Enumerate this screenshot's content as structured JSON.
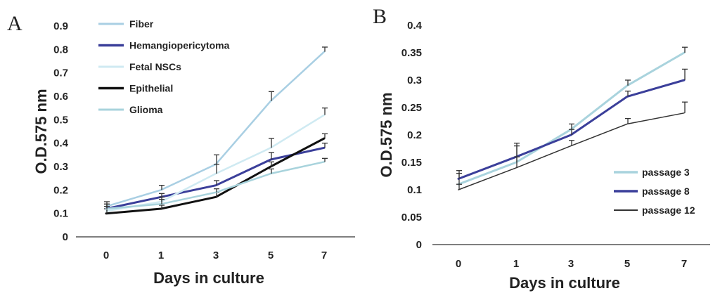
{
  "chart_data": [
    {
      "panel": "A",
      "type": "line",
      "xlabel": "Days in culture",
      "ylabel": "O.D.575 nm",
      "categories": [
        "0",
        "1",
        "3",
        "5",
        "7"
      ],
      "ylim": [
        0,
        0.9
      ],
      "yticks": [
        "0",
        "0.1",
        "0.2",
        "0.3",
        "0.4",
        "0.5",
        "0.6",
        "0.7",
        "0.8",
        "0.9"
      ],
      "legend_position": "top-left",
      "series": [
        {
          "name": "Fiber",
          "color": "#a9cfe3",
          "width": 2.5,
          "values": [
            0.13,
            0.2,
            0.31,
            0.58,
            0.79
          ],
          "errors": [
            0.02,
            0.02,
            0.04,
            0.04,
            0.02
          ]
        },
        {
          "name": "Hemangiopericytoma",
          "color": "#3b3f9a",
          "width": 3,
          "values": [
            0.12,
            0.17,
            0.22,
            0.33,
            0.38
          ],
          "errors": [
            0.02,
            0.015,
            0.02,
            0.03,
            0.02
          ]
        },
        {
          "name": "Fetal NSCs",
          "color": "#cfeaf2",
          "width": 2.5,
          "values": [
            0.11,
            0.15,
            0.27,
            0.38,
            0.52
          ],
          "errors": [
            0.02,
            0.02,
            0.04,
            0.04,
            0.03
          ]
        },
        {
          "name": "Epithelial",
          "color": "#111111",
          "width": 3,
          "values": [
            0.1,
            0.12,
            0.17,
            0.3,
            0.42
          ],
          "errors": [
            0.02,
            0.015,
            0.02,
            0.02,
            0.02
          ]
        },
        {
          "name": "Glioma",
          "color": "#a8d3dc",
          "width": 2.5,
          "values": [
            0.12,
            0.14,
            0.19,
            0.27,
            0.32
          ],
          "errors": [
            0.02,
            0.02,
            0.015,
            0.02,
            0.015
          ]
        }
      ]
    },
    {
      "panel": "B",
      "type": "line",
      "xlabel": "Days in culture",
      "ylabel": "O.D.575 nm",
      "categories": [
        "0",
        "1",
        "3",
        "5",
        "7"
      ],
      "ylim": [
        0,
        0.4
      ],
      "yticks": [
        "0",
        "0.05",
        "0.1",
        "0.15",
        "0.2",
        "0.25",
        "0.3",
        "0.35",
        "0.4"
      ],
      "legend_position": "bottom-right",
      "series": [
        {
          "name": "passage 3",
          "color": "#a9d3dd",
          "width": 3,
          "values": [
            0.11,
            0.15,
            0.21,
            0.29,
            0.35
          ],
          "errors": [
            0.02,
            0.03,
            0.01,
            0.01,
            0.01
          ]
        },
        {
          "name": "passage 8",
          "color": "#3b3f9a",
          "width": 3,
          "values": [
            0.12,
            0.16,
            0.2,
            0.27,
            0.3
          ],
          "errors": [
            0.015,
            0.025,
            0.01,
            0.01,
            0.02
          ]
        },
        {
          "name": "passage 12",
          "color": "#333333",
          "width": 1.5,
          "values": [
            0.1,
            0.14,
            0.18,
            0.22,
            0.24
          ],
          "errors": [
            0.01,
            0.02,
            0.01,
            0.01,
            0.02
          ]
        }
      ]
    }
  ]
}
